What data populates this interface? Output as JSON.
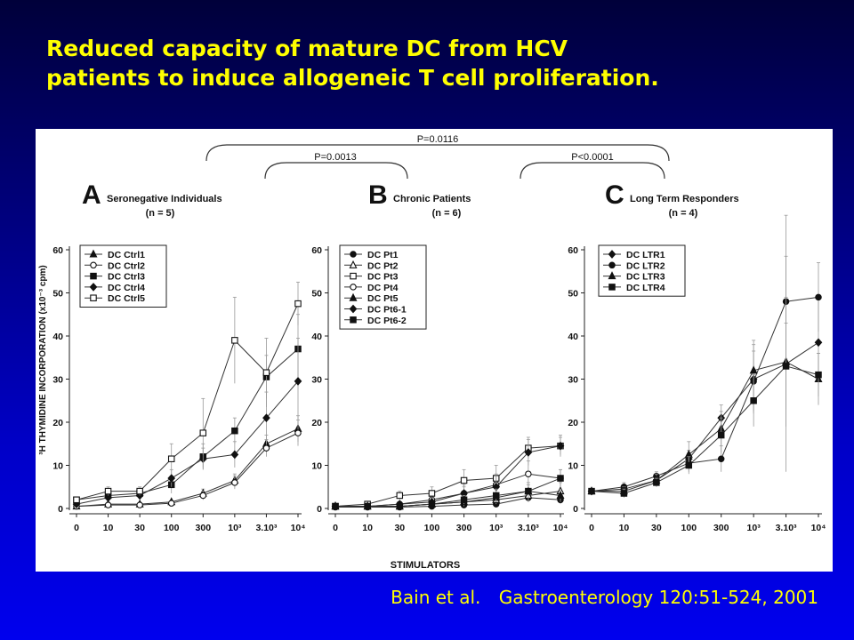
{
  "slide": {
    "title_line1": "Reduced capacity of mature DC from HCV",
    "title_line2": "patients to induce allogeneic T cell proliferation.",
    "citation_authors": "Bain et al.",
    "citation_journal": "Gastroenterology 120:51-524, 2001",
    "title_color": "#ffff00"
  },
  "figure": {
    "xlabel": "STIMULATORS",
    "ylabel": "³H THYMIDINE INCORPORATION (x10⁻³ cpm)",
    "comparisons": [
      {
        "label": "P=0.0116",
        "between": [
          "A",
          "C"
        ]
      },
      {
        "label": "P=0.0013",
        "between": [
          "A",
          "B"
        ]
      },
      {
        "label": "P<0.0001",
        "between": [
          "B",
          "C"
        ]
      }
    ]
  },
  "chart_data": [
    {
      "type": "line",
      "panel_letter": "A",
      "title_line1": "Seronegative Individuals",
      "title_line2": "(n = 5)",
      "categories": [
        "0",
        "10",
        "30",
        "100",
        "300",
        "10³",
        "3.10³",
        "10⁴"
      ],
      "yticks": [
        "0",
        "10",
        "20",
        "30",
        "40",
        "50",
        "60"
      ],
      "ylim": [
        0,
        60
      ],
      "legend": "top-left",
      "series": [
        {
          "name": "DC Ctrl1",
          "marker": "triangle-filled",
          "values": [
            0.5,
            1,
            1,
            1.5,
            3.5,
            6.5,
            15,
            18.5
          ],
          "err": [
            0.5,
            0.5,
            0.5,
            0.5,
            1,
            1.5,
            2,
            3
          ]
        },
        {
          "name": "DC Ctrl2",
          "marker": "circle-open",
          "values": [
            0.5,
            0.8,
            0.8,
            1.2,
            3,
            6,
            14,
            17.5
          ],
          "err": [
            0.5,
            0.5,
            0.5,
            0.5,
            1,
            1.5,
            2,
            3
          ]
        },
        {
          "name": "DC Ctrl3",
          "marker": "square-filled",
          "values": [
            2,
            3,
            3.5,
            5.5,
            12,
            18,
            30.5,
            37
          ],
          "err": [
            0.5,
            1,
            1,
            2,
            3,
            3,
            5,
            8
          ]
        },
        {
          "name": "DC Ctrl4",
          "marker": "diamond-filled",
          "values": [
            1,
            2.5,
            3,
            7,
            11.5,
            12.5,
            21,
            29.5
          ],
          "err": [
            0.5,
            1,
            1,
            2,
            2.5,
            3,
            6,
            10
          ]
        },
        {
          "name": "DC Ctrl5",
          "marker": "square-open",
          "values": [
            2,
            4,
            4,
            11.5,
            17.5,
            39,
            31.5,
            47.5
          ],
          "err": [
            0.5,
            1,
            1,
            3.5,
            8,
            10,
            8,
            5
          ]
        }
      ]
    },
    {
      "type": "line",
      "panel_letter": "B",
      "title_line1": "Chronic Patients",
      "title_line2": "(n = 6)",
      "categories": [
        "0",
        "10",
        "30",
        "100",
        "300",
        "10³",
        "3.10³",
        "10⁴"
      ],
      "yticks": [
        "0",
        "10",
        "20",
        "30",
        "40",
        "50",
        "60"
      ],
      "ylim": [
        0,
        60
      ],
      "legend": "top-left",
      "series": [
        {
          "name": "DC Pt1",
          "marker": "circle-filled",
          "values": [
            0.3,
            0.3,
            0.3,
            0.5,
            0.8,
            1,
            2.5,
            2
          ],
          "err": [
            0.3,
            0.3,
            0.3,
            0.3,
            0.5,
            0.5,
            1,
            1
          ]
        },
        {
          "name": "DC Pt2",
          "marker": "triangle-open",
          "values": [
            0.5,
            0.5,
            0.5,
            1,
            1.5,
            2,
            3,
            4
          ],
          "err": [
            0.3,
            0.3,
            0.3,
            0.5,
            0.8,
            1,
            1.5,
            2
          ]
        },
        {
          "name": "DC Pt3",
          "marker": "square-open",
          "values": [
            0.5,
            1,
            3,
            3.5,
            6.5,
            7,
            14,
            14.5
          ],
          "err": [
            0.5,
            0.5,
            1,
            1.5,
            2.5,
            3,
            2.5,
            2
          ]
        },
        {
          "name": "DC Pt4",
          "marker": "circle-open",
          "values": [
            0.5,
            0.5,
            1,
            2,
            3.5,
            5.5,
            8,
            7
          ],
          "err": [
            0.5,
            0.5,
            0.5,
            1,
            1.5,
            2.5,
            3,
            2
          ]
        },
        {
          "name": "DC Pt5",
          "marker": "triangle-filled",
          "values": [
            0.5,
            0.5,
            0.5,
            1,
            1.5,
            2.5,
            4,
            3
          ],
          "err": [
            0.3,
            0.3,
            0.3,
            0.5,
            1,
            1,
            1.5,
            1.5
          ]
        },
        {
          "name": "DC Pt6-1",
          "marker": "diamond-filled",
          "values": [
            0.5,
            0.5,
            1,
            1.5,
            3.5,
            5,
            13,
            14.5
          ],
          "err": [
            0.5,
            0.5,
            0.5,
            1,
            2,
            2.5,
            3,
            2.5
          ]
        },
        {
          "name": "DC Pt6-2",
          "marker": "square-filled",
          "values": [
            0.5,
            0.5,
            0.5,
            1,
            2,
            3,
            4,
            7
          ],
          "err": [
            0.3,
            0.3,
            0.3,
            0.5,
            1,
            1.5,
            2,
            2
          ]
        }
      ]
    },
    {
      "type": "line",
      "panel_letter": "C",
      "title_line1": "Long Term Responders",
      "title_line2": "(n = 4)",
      "categories": [
        "0",
        "10",
        "30",
        "100",
        "300",
        "10³",
        "3.10³",
        "10⁴"
      ],
      "yticks": [
        "0",
        "10",
        "20",
        "30",
        "40",
        "50",
        "60"
      ],
      "ylim": [
        0,
        60
      ],
      "legend": "top-left",
      "series": [
        {
          "name": "DC LTR1",
          "marker": "diamond-filled",
          "values": [
            4,
            4.5,
            6.5,
            11.5,
            21,
            30,
            33.5,
            38.5
          ],
          "err": [
            0.5,
            1,
            1,
            2,
            3,
            8,
            25,
            10
          ]
        },
        {
          "name": "DC LTR2",
          "marker": "circle-filled",
          "values": [
            4,
            5,
            7.5,
            10.5,
            11.5,
            29.5,
            48,
            49
          ],
          "err": [
            0.5,
            1,
            1,
            2,
            3,
            7,
            20,
            8
          ]
        },
        {
          "name": "DC LTR3",
          "marker": "triangle-filled",
          "values": [
            4,
            4,
            6.5,
            12.5,
            18.5,
            32,
            34,
            30
          ],
          "err": [
            0.5,
            1,
            1.5,
            3,
            4,
            7,
            15,
            6
          ]
        },
        {
          "name": "DC LTR4",
          "marker": "square-filled",
          "values": [
            4,
            3.5,
            6,
            10,
            17,
            25,
            33,
            31
          ],
          "err": [
            0.5,
            1,
            1,
            2,
            4,
            6,
            10,
            5
          ]
        }
      ]
    }
  ]
}
